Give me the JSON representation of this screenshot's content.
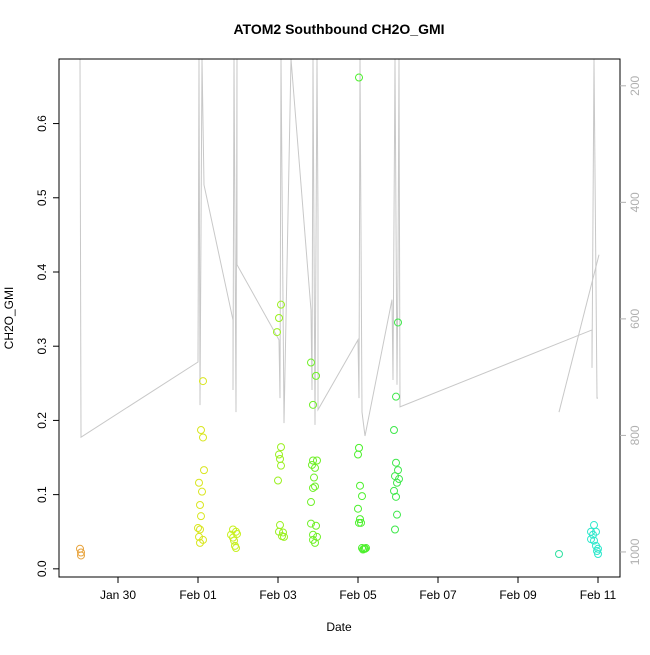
{
  "chart_data": {
    "type": "scatter",
    "title": "ATOM2 Southbound CH2O_GMI",
    "x_label": "Date",
    "y_label": "CH2O_GMI",
    "xlim": [
      -1.475,
      12.55
    ],
    "xticks": [
      {
        "value": 0,
        "label": "Jan 30"
      },
      {
        "value": 2,
        "label": "Feb 01"
      },
      {
        "value": 4,
        "label": "Feb 03"
      },
      {
        "value": 6,
        "label": "Feb 05"
      },
      {
        "value": 8,
        "label": "Feb 07"
      },
      {
        "value": 10,
        "label": "Feb 09"
      },
      {
        "value": 12,
        "label": "Feb 11"
      }
    ],
    "ylim": [
      -0.011,
      0.687
    ],
    "yticks": [
      {
        "value": 0,
        "label": "0.0"
      },
      0.1,
      0.2,
      0.3,
      0.4,
      0.5,
      0.6
    ],
    "y2lim": [
      1043,
      154
    ],
    "y2ticks": [
      200,
      400,
      600,
      800,
      1000
    ],
    "y2_color": "#b0b0b0",
    "grid": false,
    "series": [
      {
        "type": "line",
        "axis": "y2",
        "color": "#c8c8c8",
        "x": [
          -0.95,
          -0.925,
          2,
          2.025,
          2.05,
          2.1,
          2.15,
          2.875,
          2.875,
          2.9,
          2.95,
          2.975,
          2.975,
          4.025,
          4.05,
          4.075,
          4.15,
          4.325,
          4.825,
          4.85,
          4.875,
          4.925,
          4.975,
          5,
          5,
          6,
          6.025,
          6.05,
          6.1,
          6.175,
          6.85,
          6.875,
          6.925,
          6.975,
          7,
          7.025,
          7.05,
          11.85,
          11.85,
          11.9,
          11.975,
          12,
          null,
          11.025,
          12.025
        ],
        "values": [
          154,
          803,
          674,
          154,
          748,
          154,
          370,
          602,
          722,
          154,
          760,
          154,
          507,
          636,
          736,
          154,
          779,
          154,
          585,
          722,
          154,
          782,
          154,
          430,
          756,
          636,
          736,
          154,
          760,
          801,
          567,
          705,
          154,
          713,
          516,
          154,
          751,
          619,
          684,
          154,
          736,
          736,
          null,
          760,
          490
        ]
      },
      {
        "type": "scatter",
        "axis": "y",
        "x": [
          -0.95,
          -0.925,
          -0.925,
          2.075,
          2.125,
          2.125,
          2.15,
          2.025,
          2.1,
          2.05,
          2.075,
          2,
          2.05,
          2.025,
          2.125,
          2.05,
          2.875,
          2.95,
          2.825,
          2.975,
          2.875,
          2.9,
          2.925,
          2.95,
          4.075,
          4.025,
          3.975,
          4.075,
          4.025,
          4.05,
          4.075,
          4,
          4.05,
          4.025,
          4.125,
          4.1,
          4.15,
          4.825,
          4.95,
          4.875,
          4.875,
          4.975,
          4.85,
          4.925,
          4.9,
          4.875,
          4.925,
          4.825,
          4.825,
          4.95,
          4.875,
          4.975,
          4.875,
          4.925,
          6.025,
          6.025,
          6,
          6.05,
          6.1,
          6,
          6.05,
          6.075,
          6.025,
          6.1,
          6.175,
          6.125,
          6.15,
          6.2,
          7,
          6.95,
          6.9,
          6.95,
          7,
          6.925,
          7.025,
          6.975,
          6.9,
          6.95,
          6.975,
          6.925,
          11.025,
          11.9,
          11.825,
          11.95,
          11.875,
          11.825,
          11.9,
          11.95,
          12,
          11.975,
          12
        ],
        "values": [
          0.027,
          0.022,
          0.018,
          0.187,
          0.177,
          0.253,
          0.133,
          0.116,
          0.104,
          0.086,
          0.071,
          0.055,
          0.053,
          0.043,
          0.039,
          0.035,
          0.053,
          0.05,
          0.046,
          0.047,
          0.042,
          0.038,
          0.031,
          0.028,
          0.356,
          0.338,
          0.319,
          0.164,
          0.154,
          0.148,
          0.139,
          0.119,
          0.059,
          0.05,
          0.049,
          0.044,
          0.043,
          0.278,
          0.26,
          0.221,
          0.146,
          0.146,
          0.14,
          0.136,
          0.123,
          0.109,
          0.111,
          0.09,
          0.061,
          0.058,
          0.046,
          0.043,
          0.039,
          0.035,
          0.662,
          0.163,
          0.154,
          0.112,
          0.098,
          0.081,
          0.067,
          0.062,
          0.062,
          0.028,
          0.027,
          0.026,
          0.027,
          0.028,
          0.332,
          0.232,
          0.187,
          0.143,
          0.133,
          0.125,
          0.121,
          0.116,
          0.105,
          0.097,
          0.073,
          0.053,
          0.02,
          0.059,
          0.05,
          0.05,
          0.046,
          0.04,
          0.038,
          0.031,
          0.027,
          0.024,
          0.02
        ],
        "colors": [
          "#e8a33c",
          "#e8a33c",
          "#e8a33c",
          "#d9e61f",
          "#d9e61f",
          "#d9e61f",
          "#d9e61f",
          "#d9e61f",
          "#d9e61f",
          "#d9e61f",
          "#d9e61f",
          "#d9e61f",
          "#d9e61f",
          "#d9e61f",
          "#d9e61f",
          "#d9e61f",
          "#c8f01f",
          "#c8f01f",
          "#c8f01f",
          "#c8f01f",
          "#c8f01f",
          "#c8f01f",
          "#c8f01f",
          "#c8f01f",
          "#9af01f",
          "#9af01f",
          "#9af01f",
          "#9af01f",
          "#9af01f",
          "#9af01f",
          "#9af01f",
          "#9af01f",
          "#9af01f",
          "#9af01f",
          "#9af01f",
          "#9af01f",
          "#9af01f",
          "#70f028",
          "#70f028",
          "#70f028",
          "#70f028",
          "#70f028",
          "#70f028",
          "#70f028",
          "#70f028",
          "#70f028",
          "#70f028",
          "#70f028",
          "#70f028",
          "#70f028",
          "#70f028",
          "#70f028",
          "#70f028",
          "#70f028",
          "#4cf02c",
          "#4cf02c",
          "#4cf02c",
          "#4cf02c",
          "#4cf02c",
          "#4cf02c",
          "#4cf02c",
          "#4cf02c",
          "#4cf02c",
          "#4cf02c",
          "#4cf02c",
          "#4cf02c",
          "#4cf02c",
          "#4cf02c",
          "#3ee84a",
          "#3ee84a",
          "#3ee84a",
          "#3ee84a",
          "#3ee84a",
          "#3ee84a",
          "#3ee84a",
          "#3ee84a",
          "#3ee84a",
          "#3ee84a",
          "#3ee84a",
          "#3ee84a",
          "#2ee0a0",
          "#2ee8cc",
          "#2ee8cc",
          "#2ee8cc",
          "#2ee8cc",
          "#2ee8cc",
          "#2ee8cc",
          "#2ee8cc",
          "#2ee8cc",
          "#2ee8cc",
          "#2ee8cc"
        ]
      }
    ]
  }
}
